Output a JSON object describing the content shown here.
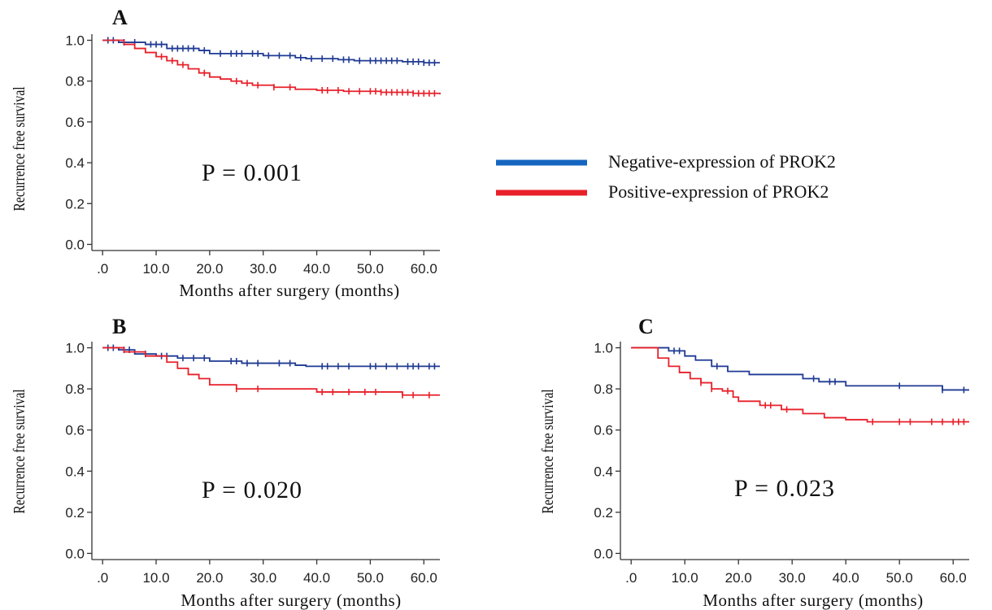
{
  "chart_data": [
    {
      "type": "line",
      "panel": "A",
      "xlabel": "Months after surgery (months)",
      "ylabel": "Recurrence free survival",
      "xticks": [
        ".0",
        "10.0",
        "20.0",
        "30.0",
        "40.0",
        "50.0",
        "60.0"
      ],
      "yticks": [
        "0.0",
        "0.2",
        "0.4",
        "0.6",
        "0.8",
        "1.0"
      ],
      "xlim": [
        -2,
        63
      ],
      "ylim": [
        -0.03,
        1.03
      ],
      "annotation": "P = 0.001",
      "series": [
        {
          "name": "Negative-expression of PROK2",
          "color": "#1f3a93",
          "steps": [
            [
              0,
              1.0
            ],
            [
              3,
              0.99
            ],
            [
              8,
              0.98
            ],
            [
              12,
              0.96
            ],
            [
              18,
              0.95
            ],
            [
              20,
              0.935
            ],
            [
              30,
              0.925
            ],
            [
              36,
              0.915
            ],
            [
              38,
              0.91
            ],
            [
              44,
              0.905
            ],
            [
              47,
              0.9
            ],
            [
              56,
              0.895
            ],
            [
              60,
              0.89
            ],
            [
              63,
              0.89
            ]
          ],
          "censored": [
            1,
            2,
            4,
            6,
            9,
            10,
            11,
            13,
            14,
            15,
            16,
            17,
            19,
            22,
            24,
            25,
            26,
            28,
            29,
            31,
            33,
            35,
            37,
            39,
            41,
            43,
            45,
            46,
            48,
            50,
            51,
            52,
            53,
            54,
            55,
            57,
            58,
            59,
            60,
            61,
            62
          ]
        },
        {
          "name": "Positive-expression of PROK2",
          "color": "#e8202a",
          "steps": [
            [
              0,
              1.0
            ],
            [
              4,
              0.98
            ],
            [
              6,
              0.96
            ],
            [
              8,
              0.94
            ],
            [
              10,
              0.92
            ],
            [
              12,
              0.9
            ],
            [
              14,
              0.88
            ],
            [
              16,
              0.86
            ],
            [
              18,
              0.84
            ],
            [
              20,
              0.82
            ],
            [
              22,
              0.81
            ],
            [
              24,
              0.8
            ],
            [
              26,
              0.79
            ],
            [
              28,
              0.78
            ],
            [
              32,
              0.77
            ],
            [
              36,
              0.76
            ],
            [
              40,
              0.755
            ],
            [
              45,
              0.75
            ],
            [
              52,
              0.745
            ],
            [
              58,
              0.74
            ],
            [
              63,
              0.735
            ]
          ],
          "censored": [
            11,
            13,
            15,
            19,
            25,
            27,
            29,
            32,
            35,
            41,
            42,
            44,
            46,
            48,
            50,
            51,
            52,
            53,
            54,
            55,
            56,
            57,
            58,
            59,
            60,
            61,
            62
          ]
        }
      ]
    },
    {
      "type": "line",
      "panel": "B",
      "xlabel": "Months after surgery (months)",
      "ylabel": "Recurrence free survival",
      "xticks": [
        ".0",
        "10.0",
        "20.0",
        "30.0",
        "40.0",
        "50.0",
        "60.0"
      ],
      "yticks": [
        "0.0",
        "0.2",
        "0.4",
        "0.6",
        "0.8",
        "1.0"
      ],
      "xlim": [
        -2,
        63
      ],
      "ylim": [
        -0.03,
        1.03
      ],
      "annotation": "P = 0.020",
      "series": [
        {
          "name": "Negative-expression of PROK2",
          "color": "#1f3a93",
          "steps": [
            [
              0,
              1.0
            ],
            [
              3,
              0.99
            ],
            [
              6,
              0.97
            ],
            [
              10,
              0.96
            ],
            [
              14,
              0.95
            ],
            [
              20,
              0.935
            ],
            [
              26,
              0.925
            ],
            [
              36,
              0.915
            ],
            [
              38,
              0.91
            ],
            [
              63,
              0.91
            ]
          ],
          "censored": [
            1,
            2,
            4,
            5,
            8,
            11,
            12,
            15,
            17,
            19,
            24,
            25,
            27,
            29,
            33,
            35,
            41,
            42,
            44,
            46,
            50,
            51,
            53,
            55,
            57,
            58,
            59,
            61,
            62
          ]
        },
        {
          "name": "Positive-expression of PROK2",
          "color": "#e8202a",
          "steps": [
            [
              0,
              1.0
            ],
            [
              4,
              0.98
            ],
            [
              8,
              0.96
            ],
            [
              12,
              0.93
            ],
            [
              14,
              0.9
            ],
            [
              16,
              0.87
            ],
            [
              18,
              0.85
            ],
            [
              20,
              0.82
            ],
            [
              25,
              0.8
            ],
            [
              40,
              0.785
            ],
            [
              56,
              0.77
            ],
            [
              63,
              0.77
            ]
          ],
          "censored": [
            25,
            29,
            41,
            43,
            46,
            49,
            51,
            56,
            58,
            61
          ]
        }
      ]
    },
    {
      "type": "line",
      "panel": "C",
      "xlabel": "Months after surgery (months)",
      "ylabel": "Recurrence free survival",
      "xticks": [
        ".0",
        "10.0",
        "20.0",
        "30.0",
        "40.0",
        "50.0",
        "60.0"
      ],
      "yticks": [
        "0.0",
        "0.2",
        "0.4",
        "0.6",
        "0.8",
        "1.0"
      ],
      "xlim": [
        -2,
        63
      ],
      "ylim": [
        -0.03,
        1.03
      ],
      "annotation": "P = 0.023",
      "series": [
        {
          "name": "Negative-expression of PROK2",
          "color": "#1f3a93",
          "steps": [
            [
              0,
              1.0
            ],
            [
              7,
              0.985
            ],
            [
              10,
              0.96
            ],
            [
              12,
              0.94
            ],
            [
              15,
              0.91
            ],
            [
              18,
              0.885
            ],
            [
              22,
              0.87
            ],
            [
              32,
              0.85
            ],
            [
              35,
              0.835
            ],
            [
              40,
              0.815
            ],
            [
              58,
              0.795
            ],
            [
              63,
              0.795
            ]
          ],
          "censored": [
            8,
            9,
            16,
            34,
            37,
            38,
            50,
            58,
            62
          ]
        },
        {
          "name": "Positive-expression of PROK2",
          "color": "#e8202a",
          "steps": [
            [
              0,
              1.0
            ],
            [
              5,
              0.95
            ],
            [
              7,
              0.91
            ],
            [
              9,
              0.88
            ],
            [
              11,
              0.85
            ],
            [
              13,
              0.83
            ],
            [
              15,
              0.8
            ],
            [
              17,
              0.79
            ],
            [
              19,
              0.76
            ],
            [
              20,
              0.74
            ],
            [
              24,
              0.72
            ],
            [
              28,
              0.7
            ],
            [
              32,
              0.68
            ],
            [
              36,
              0.66
            ],
            [
              40,
              0.65
            ],
            [
              44,
              0.64
            ],
            [
              63,
              0.64
            ]
          ],
          "censored": [
            13,
            15,
            18,
            25,
            26,
            29,
            45,
            50,
            52,
            56,
            58,
            60,
            61,
            62
          ]
        }
      ]
    }
  ],
  "legend": {
    "items": [
      {
        "label": "Negative-expression of PROK2",
        "color": "#1565c0"
      },
      {
        "label": "Positive-expression of PROK2",
        "color": "#e8202a"
      }
    ]
  },
  "panels": {
    "A": {
      "label": "A",
      "pvalue": "P = 0.001"
    },
    "B": {
      "label": "B",
      "pvalue": "P = 0.020"
    },
    "C": {
      "label": "C",
      "pvalue": "P = 0.023"
    }
  }
}
